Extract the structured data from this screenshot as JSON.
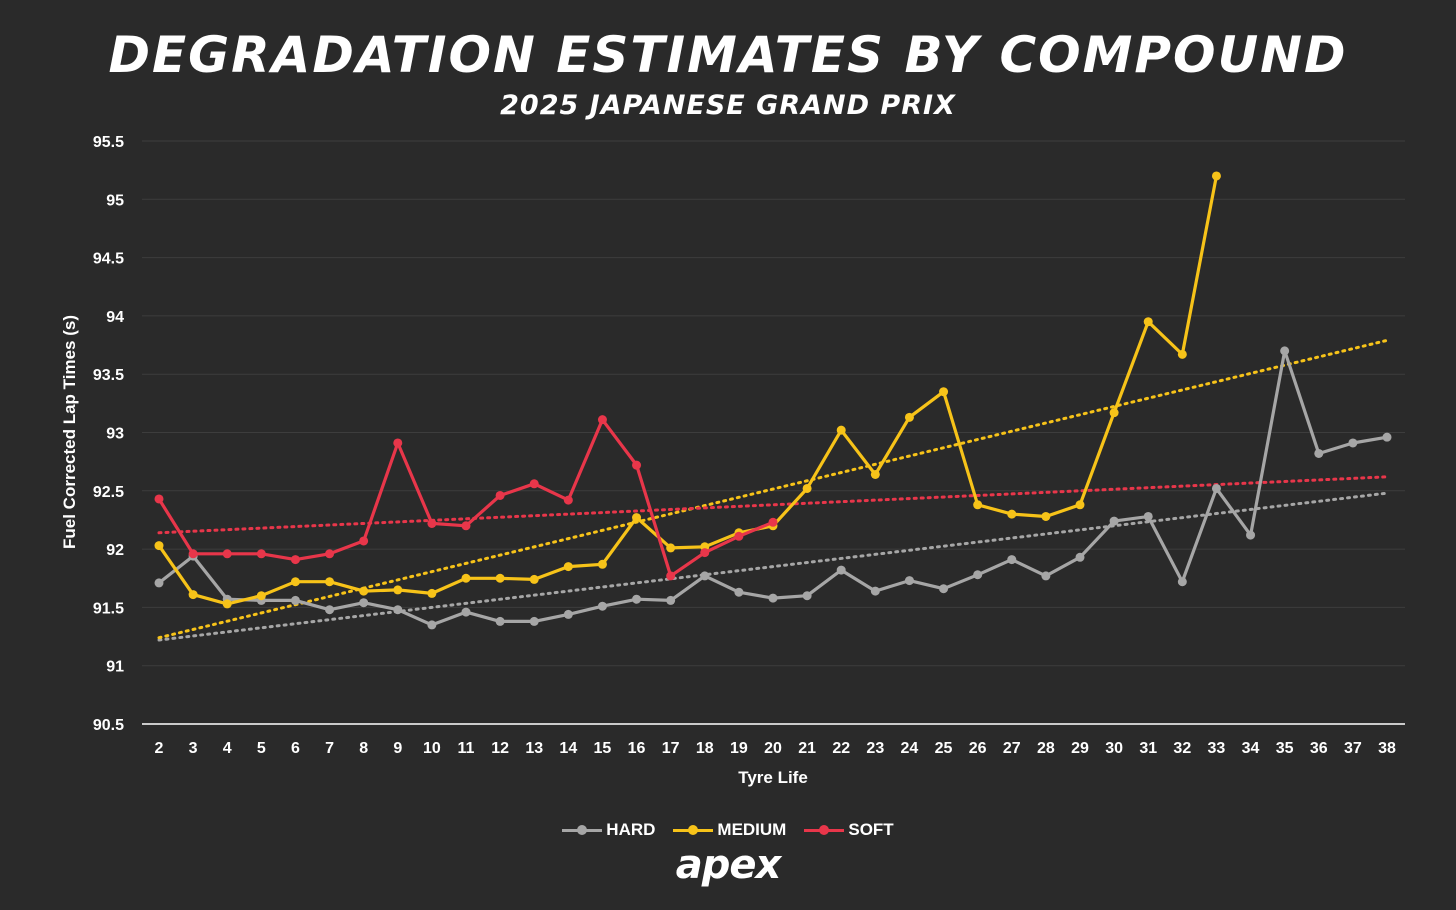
{
  "title": "DEGRADATION ESTIMATES BY COMPOUND",
  "subtitle": "2025 JAPANESE GRAND PRIX",
  "logo_text": "apex",
  "colors": {
    "background": "#2a2a2a",
    "grid": "#3d3d3d",
    "axis": "#ffffff",
    "text": "#ffffff"
  },
  "chart_data": {
    "type": "line",
    "xlabel": "Tyre Life",
    "ylabel": "Fuel Corrected Lap Times (s)",
    "xlim": [
      2,
      38
    ],
    "ylim": [
      90.5,
      95.5
    ],
    "yticks": [
      90.5,
      91,
      91.5,
      92,
      92.5,
      93,
      93.5,
      94,
      94.5,
      95,
      95.5
    ],
    "ytick_labels": [
      "90.5",
      "91",
      "91.5",
      "92",
      "92.5",
      "93",
      "93.5",
      "94",
      "94.5",
      "95",
      "95.5"
    ],
    "x": [
      2,
      3,
      4,
      5,
      6,
      7,
      8,
      9,
      10,
      11,
      12,
      13,
      14,
      15,
      16,
      17,
      18,
      19,
      20,
      21,
      22,
      23,
      24,
      25,
      26,
      27,
      28,
      29,
      30,
      31,
      32,
      33,
      34,
      35,
      36,
      37,
      38
    ],
    "legend_position": "bottom-center",
    "series": [
      {
        "name": "HARD",
        "color": "#a6a6a6",
        "x": [
          2,
          3,
          4,
          5,
          6,
          7,
          8,
          9,
          10,
          11,
          12,
          13,
          14,
          15,
          16,
          17,
          18,
          19,
          20,
          21,
          22,
          23,
          24,
          25,
          26,
          27,
          28,
          29,
          30,
          31,
          32,
          33,
          34,
          35,
          36,
          37,
          38
        ],
        "values": [
          91.71,
          91.94,
          91.57,
          91.56,
          91.56,
          91.48,
          91.54,
          91.48,
          91.35,
          91.46,
          91.38,
          91.38,
          91.44,
          91.51,
          91.57,
          91.56,
          91.77,
          91.63,
          91.58,
          91.6,
          91.82,
          91.64,
          91.73,
          91.66,
          91.78,
          91.91,
          91.77,
          91.93,
          92.24,
          92.28,
          91.72,
          92.52,
          92.12,
          93.7,
          92.82,
          92.91,
          92.96
        ],
        "trend": [
          91.22,
          92.48
        ]
      },
      {
        "name": "MEDIUM",
        "color": "#f7c319",
        "x": [
          2,
          3,
          4,
          5,
          6,
          7,
          8,
          9,
          10,
          11,
          12,
          13,
          14,
          15,
          16,
          17,
          18,
          19,
          20,
          21,
          22,
          23,
          24,
          25,
          26,
          27,
          28,
          29,
          30,
          31,
          32,
          33
        ],
        "values": [
          92.03,
          91.61,
          91.53,
          91.6,
          91.72,
          91.72,
          91.64,
          91.65,
          91.62,
          91.75,
          91.75,
          91.74,
          91.85,
          91.87,
          92.27,
          92.01,
          92.02,
          92.14,
          92.2,
          92.52,
          93.02,
          92.64,
          93.13,
          93.35,
          92.38,
          92.3,
          92.28,
          92.38,
          93.17,
          93.95,
          93.67,
          95.2
        ],
        "trend": [
          91.24,
          93.79
        ]
      },
      {
        "name": "SOFT",
        "color": "#e8364a",
        "x": [
          2,
          3,
          4,
          5,
          6,
          7,
          8,
          9,
          10,
          11,
          12,
          13,
          14,
          15,
          16,
          17,
          18,
          19,
          20
        ],
        "values": [
          92.43,
          91.96,
          91.96,
          91.96,
          91.91,
          91.96,
          92.07,
          92.91,
          92.22,
          92.2,
          92.46,
          92.56,
          92.42,
          93.11,
          92.72,
          91.77,
          91.97,
          92.11,
          92.23
        ],
        "trend": [
          92.14,
          92.62
        ]
      }
    ]
  }
}
